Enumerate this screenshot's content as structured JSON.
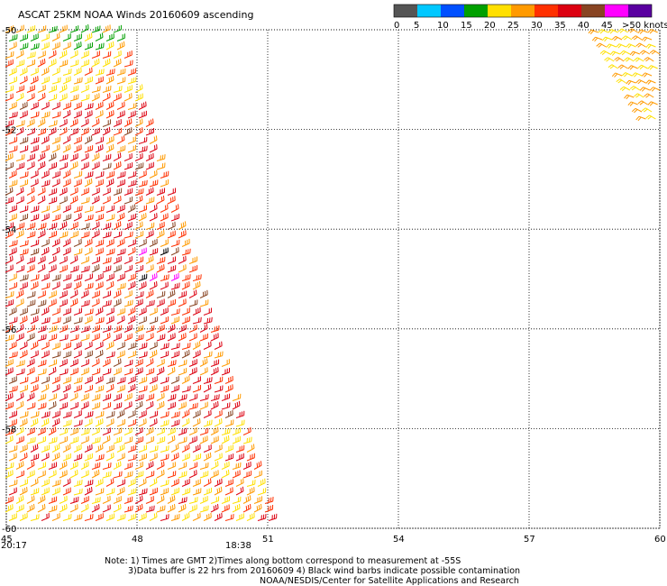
{
  "title": "ASCAT 25KM NOAA Winds 20160609 ascending",
  "legend": {
    "ticks": [
      "0",
      "5",
      "10",
      "15",
      "20",
      "25",
      "30",
      "35",
      "40",
      "45",
      ">50 knots"
    ],
    "colors": [
      "#555555",
      "#00c8ff",
      "#0050ff",
      "#00a000",
      "#ffe000",
      "#ff9a00",
      "#ff3000",
      "#dc0010",
      "#884422",
      "#ff00ff",
      "#5a00a0"
    ]
  },
  "map": {
    "lat_labels": [
      "-50",
      "-52",
      "-54",
      "-56",
      "-58",
      "-60"
    ],
    "lon_labels": [
      "45",
      "48",
      "51",
      "54",
      "57",
      "60"
    ],
    "times": {
      "left": "20:17",
      "right": "18:38"
    },
    "time_color": "#800080",
    "swaths": [
      {
        "name": "main-pass",
        "dominant_knots": "30-40",
        "colors": [
          "#ffe000",
          "#ff9a00",
          "#ff3000",
          "#dc0010",
          "#884422",
          "#00a000",
          "#000000",
          "#ff00ff"
        ]
      },
      {
        "name": "northeast-corner-pass",
        "dominant_knots": "20-30",
        "colors": [
          "#ffe000",
          "#ff9a00"
        ]
      }
    ]
  },
  "notes": {
    "line1": "Note: 1) Times are GMT 2)Times along bottom correspond to measurement at -55S",
    "line2": "3)Data buffer is 22 hrs from 20160609 4) Black wind barbs indicate possible contamination",
    "line3": "NOAA/NESDIS/Center for Satellite Applications and Research"
  }
}
